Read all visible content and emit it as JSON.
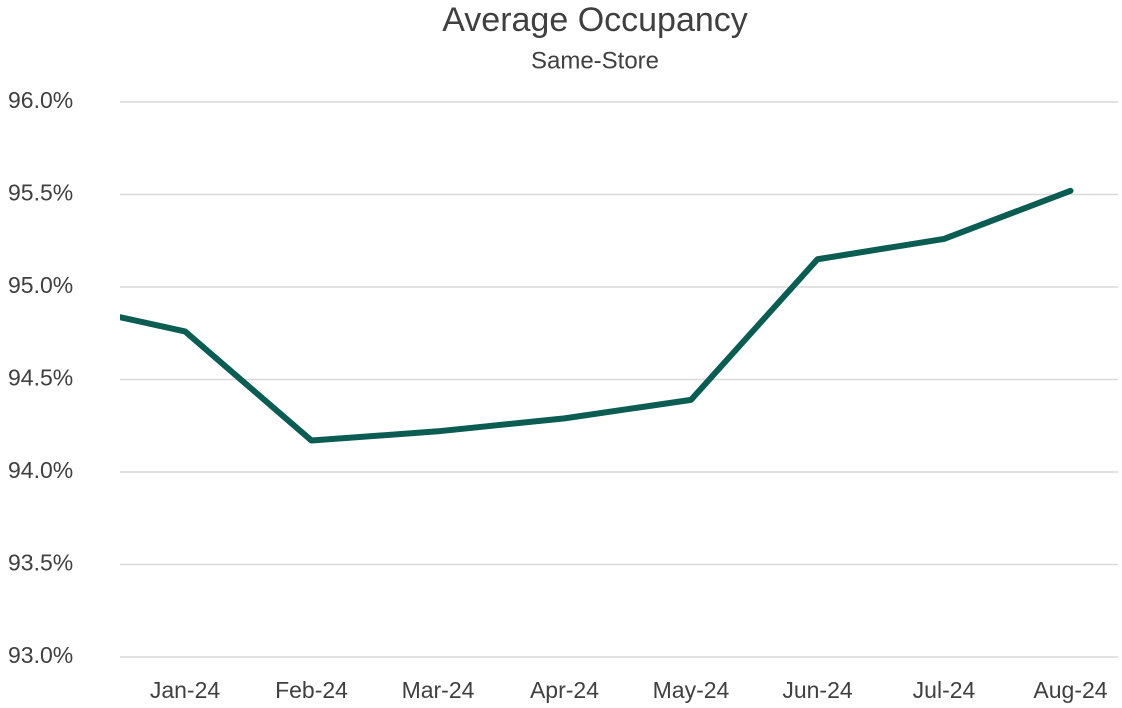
{
  "chart_data": {
    "type": "line",
    "title": "Average Occupancy",
    "subtitle": "Same-Store",
    "categories": [
      null,
      "Jan-24",
      "Feb-24",
      "Mar-24",
      "Apr-24",
      "May-24",
      "Jun-24",
      "Jul-24",
      "Aug-24"
    ],
    "series": [
      {
        "name": "Average Occupancy",
        "color": "#0b5c52",
        "values": [
          94.91,
          94.76,
          94.17,
          94.22,
          94.29,
          94.39,
          95.15,
          95.26,
          95.52
        ]
      }
    ],
    "ylim": [
      93.0,
      96.0
    ],
    "yticks": [
      {
        "value": 93.0,
        "label": "93.0%"
      },
      {
        "value": 93.5,
        "label": "93.5%"
      },
      {
        "value": 94.0,
        "label": "94.0%"
      },
      {
        "value": 94.5,
        "label": "94.5%"
      },
      {
        "value": 95.0,
        "label": "95.0%"
      },
      {
        "value": 95.5,
        "label": "95.5%"
      },
      {
        "value": 96.0,
        "label": "96.0%"
      }
    ],
    "grid": true
  }
}
